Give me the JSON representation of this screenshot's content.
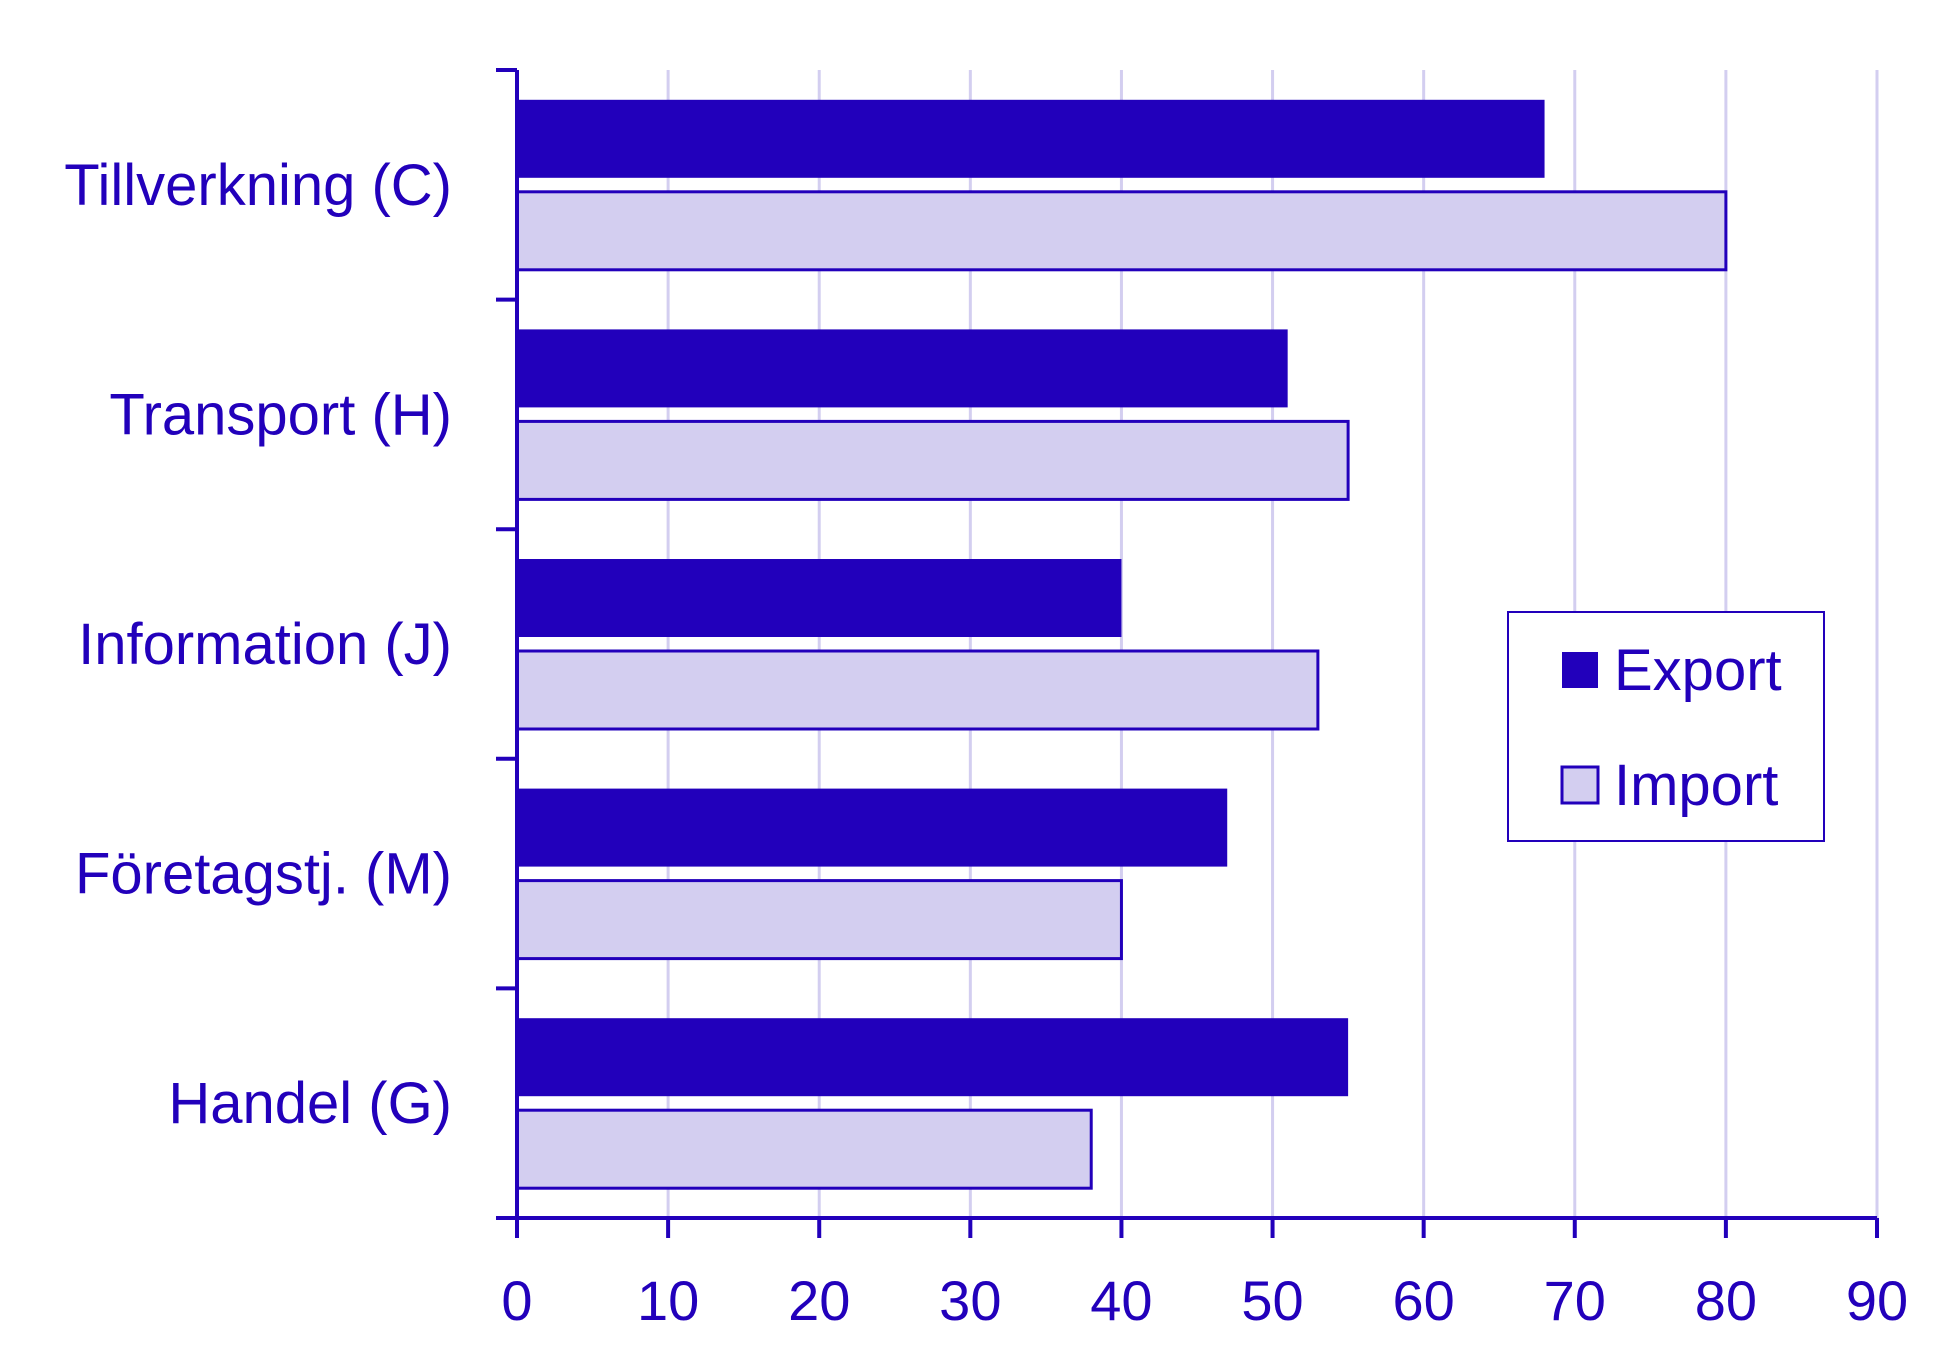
{
  "chart_data": {
    "type": "bar",
    "orientation": "horizontal",
    "categories": [
      "Tillverkning (C)",
      "Transport (H)",
      "Information (J)",
      "Företagstj. (M)",
      "Handel (G)"
    ],
    "series": [
      {
        "name": "Export",
        "values": [
          68,
          51,
          40,
          47,
          55
        ]
      },
      {
        "name": "Import",
        "values": [
          80,
          55,
          53,
          40,
          38
        ]
      }
    ],
    "xlim": [
      0,
      90
    ],
    "xticks": [
      0,
      10,
      20,
      30,
      40,
      50,
      60,
      70,
      80,
      90
    ],
    "grid": "vertical",
    "legend_position": "right",
    "colors": {
      "axis": "#2200BB",
      "text": "#2200BB",
      "export_fill": "#2200BB",
      "import_fill": "#D3CEF0",
      "import_stroke": "#2200BB",
      "grid": "#D3CEF0"
    }
  }
}
